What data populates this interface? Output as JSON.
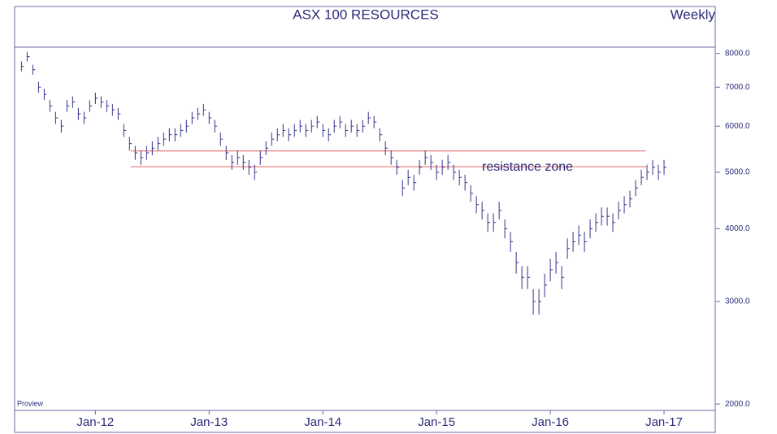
{
  "chart_data": {
    "type": "ohlc",
    "title": "ASX 100 RESOURCES",
    "subtitle": "Weekly",
    "watermark": "Proview",
    "log_scale": true,
    "color": "#34348a",
    "xlim": [
      2011.29,
      2017.45
    ],
    "xticks": [
      {
        "value": 2012,
        "label": "Jan-12"
      },
      {
        "value": 2013,
        "label": "Jan-13"
      },
      {
        "value": 2014,
        "label": "Jan-14"
      },
      {
        "value": 2015,
        "label": "Jan-15"
      },
      {
        "value": 2016,
        "label": "Jan-16"
      },
      {
        "value": 2017,
        "label": "Jan-17"
      }
    ],
    "ylim": [
      1950,
      8200
    ],
    "yticks": [
      {
        "value": 2000,
        "label": "2000.0"
      },
      {
        "value": 3000,
        "label": "3000.0"
      },
      {
        "value": 4000,
        "label": "4000.0"
      },
      {
        "value": 5000,
        "label": "5000.0"
      },
      {
        "value": 6000,
        "label": "6000.0"
      },
      {
        "value": 7000,
        "label": "7000.0"
      },
      {
        "value": 8000,
        "label": "8000.0"
      }
    ],
    "resistance": {
      "label": "resistance zone",
      "color": "#e06060",
      "levels": [
        5440,
        5110
      ],
      "x": [
        2012.31,
        2016.84
      ]
    },
    "x": [
      2011.35,
      2011.4,
      2011.45,
      2011.5,
      2011.55,
      2011.6,
      2011.65,
      2011.7,
      2011.75,
      2011.8,
      2011.85,
      2011.9,
      2011.95,
      2012,
      2012.05,
      2012.1,
      2012.15,
      2012.2,
      2012.25,
      2012.3,
      2012.35,
      2012.4,
      2012.45,
      2012.5,
      2012.55,
      2012.6,
      2012.65,
      2012.7,
      2012.75,
      2012.8,
      2012.85,
      2012.9,
      2012.95,
      2013,
      2013.05,
      2013.1,
      2013.15,
      2013.2,
      2013.25,
      2013.3,
      2013.35,
      2013.4,
      2013.45,
      2013.5,
      2013.55,
      2013.6,
      2013.65,
      2013.7,
      2013.75,
      2013.8,
      2013.85,
      2013.9,
      2013.95,
      2014,
      2014.05,
      2014.1,
      2014.15,
      2014.2,
      2014.25,
      2014.3,
      2014.35,
      2014.4,
      2014.45,
      2014.5,
      2014.55,
      2014.6,
      2014.65,
      2014.7,
      2014.75,
      2014.8,
      2014.85,
      2014.9,
      2014.95,
      2015,
      2015.05,
      2015.1,
      2015.15,
      2015.2,
      2015.25,
      2015.3,
      2015.35,
      2015.4,
      2015.45,
      2015.5,
      2015.55,
      2015.6,
      2015.65,
      2015.7,
      2015.75,
      2015.8,
      2015.85,
      2015.9,
      2015.95,
      2016,
      2016.05,
      2016.1,
      2016.15,
      2016.2,
      2016.25,
      2016.3,
      2016.35,
      2016.4,
      2016.45,
      2016.5,
      2016.55,
      2016.6,
      2016.65,
      2016.7,
      2016.75,
      2016.8,
      2016.85,
      2016.9,
      2016.95,
      2017
    ],
    "close": [
      7600,
      7900,
      7500,
      7000,
      6800,
      6500,
      6200,
      6000,
      6500,
      6600,
      6300,
      6200,
      6500,
      6700,
      6600,
      6500,
      6400,
      6300,
      5900,
      5600,
      5400,
      5300,
      5400,
      5500,
      5600,
      5700,
      5800,
      5800,
      5900,
      6000,
      6200,
      6300,
      6400,
      6200,
      6000,
      5700,
      5400,
      5200,
      5300,
      5200,
      5100,
      5000,
      5300,
      5500,
      5700,
      5800,
      5900,
      5800,
      5900,
      6000,
      5900,
      6000,
      6100,
      5900,
      5800,
      6000,
      6100,
      5900,
      6000,
      5900,
      6000,
      6200,
      6100,
      5800,
      5500,
      5300,
      5100,
      4700,
      4900,
      4800,
      5100,
      5300,
      5200,
      5000,
      5100,
      5200,
      5000,
      4900,
      4800,
      4600,
      4400,
      4300,
      4100,
      4100,
      4300,
      4000,
      3800,
      3500,
      3300,
      3300,
      3000,
      3000,
      3200,
      3400,
      3500,
      3300,
      3700,
      3800,
      3900,
      3800,
      4000,
      4100,
      4200,
      4200,
      4100,
      4300,
      4400,
      4500,
      4700,
      4900,
      5000,
      5100,
      5000,
      5100
    ],
    "high": [
      7750,
      8050,
      7650,
      7150,
      6950,
      6650,
      6350,
      6150,
      6650,
      6750,
      6450,
      6350,
      6650,
      6850,
      6750,
      6650,
      6550,
      6450,
      6050,
      5750,
      5550,
      5450,
      5550,
      5650,
      5750,
      5850,
      5950,
      5950,
      6050,
      6150,
      6350,
      6450,
      6550,
      6350,
      6150,
      5850,
      5550,
      5350,
      5450,
      5350,
      5250,
      5150,
      5450,
      5650,
      5850,
      5950,
      6050,
      5950,
      6050,
      6150,
      6050,
      6150,
      6250,
      6050,
      5950,
      6150,
      6250,
      6050,
      6150,
      6050,
      6150,
      6350,
      6250,
      5950,
      5650,
      5450,
      5250,
      4850,
      5050,
      4950,
      5250,
      5450,
      5350,
      5150,
      5250,
      5350,
      5150,
      5050,
      4950,
      4750,
      4550,
      4450,
      4250,
      4250,
      4450,
      4150,
      3950,
      3650,
      3450,
      3450,
      3150,
      3150,
      3350,
      3550,
      3650,
      3450,
      3850,
      3950,
      4050,
      3950,
      4150,
      4250,
      4350,
      4350,
      4250,
      4450,
      4550,
      4650,
      4850,
      5050,
      5150,
      5250,
      5150,
      5250
    ],
    "low": [
      7450,
      7750,
      7350,
      6850,
      6650,
      6350,
      6050,
      5850,
      6350,
      6450,
      6150,
      6050,
      6350,
      6550,
      6450,
      6350,
      6250,
      6150,
      5750,
      5450,
      5250,
      5150,
      5250,
      5350,
      5450,
      5550,
      5650,
      5650,
      5750,
      5850,
      6050,
      6150,
      6250,
      6050,
      5850,
      5550,
      5250,
      5050,
      5150,
      5050,
      4950,
      4850,
      5150,
      5350,
      5550,
      5650,
      5750,
      5650,
      5750,
      5850,
      5750,
      5850,
      5950,
      5750,
      5650,
      5850,
      5950,
      5750,
      5850,
      5750,
      5850,
      6050,
      5950,
      5650,
      5350,
      5150,
      4950,
      4550,
      4750,
      4650,
      4950,
      5150,
      5050,
      4850,
      4950,
      5050,
      4850,
      4750,
      4650,
      4450,
      4250,
      4150,
      3950,
      3950,
      4150,
      3850,
      3650,
      3350,
      3150,
      3150,
      2850,
      2850,
      3050,
      3250,
      3350,
      3150,
      3550,
      3650,
      3750,
      3650,
      3850,
      3950,
      4050,
      4050,
      3950,
      4150,
      4250,
      4350,
      4550,
      4750,
      4850,
      4950,
      4850,
      4950
    ]
  }
}
